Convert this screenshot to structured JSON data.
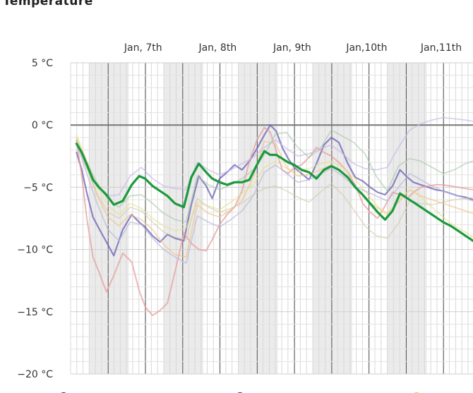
{
  "chart_data": {
    "type": "line",
    "title": "Temperature",
    "yunit": "°C",
    "ylim": [
      -20,
      5
    ],
    "yticks": [
      5,
      0,
      -5,
      -10,
      -15,
      -20
    ],
    "ytick_labels": [
      "5 °C",
      "0 °C",
      "−5 °C",
      "−10 °C",
      "−15 °C",
      "−20 °C"
    ],
    "xlim": [
      6.0,
      11.4
    ],
    "xticks": [
      7,
      8,
      9,
      10,
      11
    ],
    "xtick_labels": [
      "Jan, 7th",
      "Jan, 8th",
      "Jan, 9th",
      "Jan,10th",
      "Jan,11th"
    ],
    "grid": true,
    "night_bands": [
      [
        6.25,
        6.78
      ],
      [
        7.25,
        7.78
      ],
      [
        8.25,
        8.78
      ],
      [
        9.25,
        9.78
      ],
      [
        10.25,
        10.78
      ]
    ],
    "series": [
      {
        "role": "main",
        "color": "#1a9a3c",
        "x": [
          6.08,
          6.15,
          6.22,
          6.3,
          6.38,
          6.48,
          6.58,
          6.7,
          6.82,
          6.92,
          7.0,
          7.1,
          7.2,
          7.3,
          7.4,
          7.52,
          7.62,
          7.72,
          7.82,
          7.9,
          8.0,
          8.1,
          8.2,
          8.3,
          8.4,
          8.5,
          8.6,
          8.68,
          8.76,
          8.84,
          8.92,
          9.0,
          9.1,
          9.2,
          9.3,
          9.4,
          9.5,
          9.6,
          9.72,
          9.82,
          9.92,
          10.02,
          10.12,
          10.22,
          10.32,
          10.42,
          10.52,
          10.6,
          10.7,
          10.8,
          10.9,
          11.0,
          11.1,
          11.2,
          11.3,
          11.4
        ],
        "y": [
          -1.5,
          -2.2,
          -3.2,
          -4.4,
          -5.0,
          -5.6,
          -6.4,
          -6.1,
          -4.8,
          -4.1,
          -4.3,
          -4.9,
          -5.3,
          -5.7,
          -6.3,
          -6.6,
          -4.2,
          -3.1,
          -3.8,
          -4.3,
          -4.6,
          -4.8,
          -4.6,
          -4.6,
          -4.4,
          -3.2,
          -2.1,
          -2.4,
          -2.4,
          -2.7,
          -3.0,
          -3.2,
          -3.6,
          -3.8,
          -4.3,
          -3.6,
          -3.3,
          -3.6,
          -4.2,
          -5.0,
          -5.6,
          -6.3,
          -7.0,
          -7.6,
          -6.9,
          -5.5,
          -5.9,
          -6.2,
          -6.6,
          -7.0,
          -7.4,
          -7.8,
          -8.1,
          -8.5,
          -8.9,
          -9.3
        ],
        "width": 3.2,
        "opacity": 1.0
      },
      {
        "role": "member",
        "color": "#6a5fb5",
        "x": [
          6.08,
          6.15,
          6.22,
          6.3,
          6.38,
          6.48,
          6.58,
          6.7,
          6.82,
          6.92,
          7.0,
          7.1,
          7.2,
          7.3,
          7.4,
          7.52,
          7.62,
          7.72,
          7.82,
          7.9,
          8.0,
          8.1,
          8.2,
          8.3,
          8.4,
          8.5,
          8.6,
          8.68,
          8.76,
          8.84,
          8.92,
          9.0,
          9.1,
          9.2,
          9.3,
          9.4,
          9.5,
          9.6,
          9.72,
          9.82,
          9.92,
          10.02,
          10.12,
          10.22,
          10.32,
          10.42,
          10.52,
          10.6,
          10.7,
          10.8,
          10.9,
          11.0,
          11.1,
          11.2,
          11.3,
          11.4
        ],
        "y": [
          -2.2,
          -3.6,
          -5.5,
          -7.4,
          -8.3,
          -9.4,
          -10.5,
          -8.4,
          -7.2,
          -7.8,
          -8.2,
          -8.9,
          -9.4,
          -8.8,
          -9.1,
          -9.3,
          -6.4,
          -4.1,
          -4.9,
          -5.9,
          -4.3,
          -3.8,
          -3.2,
          -3.6,
          -2.9,
          -1.9,
          -0.8,
          0.0,
          -0.5,
          -1.8,
          -2.7,
          -3.4,
          -3.9,
          -4.4,
          -3.1,
          -1.6,
          -1.0,
          -1.4,
          -3.1,
          -4.2,
          -4.5,
          -5.0,
          -5.4,
          -5.6,
          -4.9,
          -3.6,
          -4.2,
          -4.6,
          -4.8,
          -5.0,
          -5.2,
          -5.3,
          -5.5,
          -5.7,
          -5.8,
          -6.0
        ],
        "width": 2.2,
        "opacity": 0.75
      },
      {
        "role": "member",
        "color": "#e89a9a",
        "x": [
          6.08,
          6.15,
          6.22,
          6.3,
          6.38,
          6.48,
          6.58,
          6.7,
          6.82,
          6.92,
          7.0,
          7.1,
          7.2,
          7.3,
          7.4,
          7.52,
          7.62,
          7.72,
          7.82,
          7.9,
          8.0,
          8.1,
          8.2,
          8.3,
          8.4,
          8.5,
          8.6,
          8.68,
          8.76,
          8.84,
          8.92,
          9.0,
          9.1,
          9.2,
          9.3,
          9.4,
          9.5,
          9.6,
          9.72,
          9.82,
          9.92,
          10.02,
          10.12,
          10.22,
          10.32,
          10.42,
          10.52,
          10.6,
          10.7,
          10.8,
          10.9,
          11.0,
          11.1,
          11.2,
          11.3,
          11.4
        ],
        "y": [
          -1.2,
          -4.1,
          -7.6,
          -10.6,
          -11.8,
          -13.4,
          -12.1,
          -10.3,
          -11.0,
          -13.3,
          -14.6,
          -15.3,
          -14.9,
          -14.3,
          -11.8,
          -8.7,
          -9.5,
          -10.0,
          -10.1,
          -9.2,
          -8.0,
          -7.2,
          -6.6,
          -5.3,
          -2.9,
          -1.2,
          -0.2,
          -0.6,
          -2.1,
          -3.6,
          -3.9,
          -3.4,
          -3.2,
          -2.6,
          -1.8,
          -2.2,
          -2.5,
          -3.0,
          -3.8,
          -4.8,
          -6.3,
          -7.0,
          -7.5,
          -6.5,
          -5.4,
          -5.6,
          -5.9,
          -5.4,
          -5.0,
          -4.9,
          -4.8,
          -4.8,
          -4.9,
          -5.0,
          -5.1,
          -5.2
        ],
        "width": 2.0,
        "opacity": 0.7
      },
      {
        "role": "member",
        "color": "#f0c080",
        "x": [
          6.08,
          6.2,
          6.35,
          6.5,
          6.65,
          6.8,
          6.95,
          7.1,
          7.25,
          7.4,
          7.55,
          7.7,
          7.85,
          8.0,
          8.15,
          8.3,
          8.45,
          8.6,
          8.75,
          8.9,
          9.05,
          9.2,
          9.35,
          9.5,
          9.65,
          9.8,
          9.95,
          10.1,
          10.25,
          10.4,
          10.55,
          10.7,
          10.85,
          11.0,
          11.15,
          11.3,
          11.4
        ],
        "y": [
          -1.0,
          -3.0,
          -5.6,
          -7.4,
          -8.1,
          -7.2,
          -7.6,
          -8.4,
          -9.6,
          -10.4,
          -10.6,
          -6.4,
          -7.1,
          -7.4,
          -6.8,
          -6.1,
          -4.2,
          -1.3,
          -1.5,
          -3.4,
          -4.1,
          -4.0,
          -3.6,
          -3.2,
          -3.9,
          -4.8,
          -5.9,
          -6.6,
          -7.1,
          -6.2,
          -5.2,
          -5.7,
          -6.0,
          -6.3,
          -6.6,
          -6.9,
          -7.1
        ],
        "width": 1.8,
        "opacity": 0.6
      },
      {
        "role": "member",
        "color": "#e8e08a",
        "x": [
          6.08,
          6.2,
          6.35,
          6.5,
          6.65,
          6.8,
          6.95,
          7.1,
          7.25,
          7.4,
          7.55,
          7.7,
          7.85,
          8.0,
          8.15,
          8.3,
          8.45,
          8.6,
          8.75,
          8.9,
          9.05,
          9.2,
          9.35,
          9.5,
          9.65,
          9.8,
          9.95,
          10.1,
          10.25,
          10.4,
          10.55,
          10.7,
          10.85,
          11.0,
          11.15,
          11.3,
          11.4
        ],
        "y": [
          -0.8,
          -2.6,
          -4.9,
          -6.5,
          -7.2,
          -6.3,
          -6.7,
          -7.5,
          -8.1,
          -8.5,
          -8.3,
          -6.2,
          -6.5,
          -6.8,
          -6.2,
          -5.5,
          -4.8,
          -3.4,
          -2.9,
          -3.5,
          -3.8,
          -3.5,
          -3.1,
          -2.9,
          -3.4,
          -4.2,
          -5.3,
          -6.4,
          -7.3,
          -6.0,
          -5.2,
          -5.8,
          -6.6,
          -7.4,
          -8.1,
          -8.6,
          -9.0
        ],
        "width": 1.8,
        "opacity": 0.6
      },
      {
        "role": "member",
        "color": "#b8b8d8",
        "x": [
          6.08,
          6.2,
          6.35,
          6.5,
          6.65,
          6.8,
          6.95,
          7.1,
          7.25,
          7.4,
          7.55,
          7.7,
          7.85,
          8.0,
          8.15,
          8.3,
          8.45,
          8.6,
          8.75,
          8.9,
          9.05,
          9.2,
          9.35,
          9.5,
          9.65,
          9.8,
          9.95,
          10.1,
          10.25,
          10.4,
          10.55,
          10.7,
          10.85,
          11.0,
          11.15,
          11.3,
          11.4
        ],
        "y": [
          -1.4,
          -3.6,
          -6.2,
          -8.4,
          -9.3,
          -7.8,
          -8.0,
          -9.1,
          -10.0,
          -10.6,
          -11.1,
          -7.3,
          -7.8,
          -8.2,
          -7.6,
          -6.9,
          -5.7,
          -3.8,
          -3.2,
          -3.9,
          -4.6,
          -4.4,
          -3.9,
          -3.5,
          -4.1,
          -4.9,
          -5.3,
          -5.7,
          -6.1,
          -5.0,
          -3.9,
          -4.4,
          -4.9,
          -5.3,
          -5.6,
          -5.9,
          -6.1
        ],
        "width": 1.8,
        "opacity": 0.65
      },
      {
        "role": "member",
        "color": "#c8b8e8",
        "x": [
          6.08,
          6.2,
          6.35,
          6.5,
          6.65,
          6.8,
          6.95,
          7.1,
          7.25,
          7.4,
          7.55,
          7.7,
          7.85,
          8.0,
          8.15,
          8.3,
          8.45,
          8.6,
          8.75,
          8.9,
          9.05,
          9.2,
          9.35,
          9.5,
          9.65,
          9.8,
          9.95,
          10.1,
          10.25,
          10.4,
          10.55,
          10.7,
          10.85,
          11.0,
          11.15,
          11.3,
          11.4
        ],
        "y": [
          -1.6,
          -3.2,
          -4.8,
          -5.7,
          -5.6,
          -4.1,
          -3.4,
          -4.3,
          -4.9,
          -5.1,
          -5.2,
          -3.0,
          -3.6,
          -4.0,
          -3.6,
          -3.1,
          -2.6,
          -1.8,
          -1.2,
          -1.9,
          -2.5,
          -2.3,
          -1.9,
          -1.6,
          -2.3,
          -3.1,
          -3.5,
          -3.6,
          -3.4,
          -1.8,
          -0.4,
          0.1,
          0.4,
          0.6,
          0.5,
          0.4,
          0.3
        ],
        "width": 1.8,
        "opacity": 0.65
      },
      {
        "role": "member",
        "color": "#a8c8a8",
        "x": [
          6.08,
          6.2,
          6.35,
          6.5,
          6.65,
          6.8,
          6.95,
          7.1,
          7.25,
          7.4,
          7.55,
          7.7,
          7.85,
          8.0,
          8.15,
          8.3,
          8.45,
          8.6,
          8.75,
          8.9,
          9.05,
          9.2,
          9.35,
          9.5,
          9.65,
          9.8,
          9.95,
          10.1,
          10.25,
          10.4,
          10.55,
          10.7,
          10.85,
          11.0,
          11.15,
          11.3,
          11.4
        ],
        "y": [
          -1.2,
          -2.8,
          -4.6,
          -6.0,
          -6.6,
          -5.7,
          -5.6,
          -6.3,
          -7.1,
          -7.6,
          -7.8,
          -4.1,
          -4.8,
          -5.2,
          -4.8,
          -4.3,
          -3.6,
          -2.4,
          -0.7,
          -0.6,
          -1.8,
          -2.6,
          -1.9,
          -0.4,
          -0.9,
          -1.4,
          -2.3,
          -4.1,
          -5.3,
          -3.3,
          -2.7,
          -2.9,
          -3.4,
          -3.9,
          -3.6,
          -3.1,
          -2.9
        ],
        "width": 1.8,
        "opacity": 0.6
      },
      {
        "role": "member",
        "color": "#d0c8a8",
        "x": [
          6.08,
          6.2,
          6.35,
          6.5,
          6.65,
          6.8,
          6.95,
          7.1,
          7.25,
          7.4,
          7.55,
          7.7,
          7.85,
          8.0,
          8.15,
          8.3,
          8.45,
          8.6,
          8.75,
          8.9,
          9.05,
          9.2,
          9.35,
          9.5,
          9.65,
          9.8,
          9.95,
          10.1,
          10.25,
          10.4,
          10.55,
          10.7,
          10.85,
          11.0,
          11.15,
          11.3,
          11.4
        ],
        "y": [
          -1.3,
          -3.3,
          -5.4,
          -7.0,
          -7.5,
          -6.6,
          -6.9,
          -7.8,
          -8.6,
          -9.0,
          -9.2,
          -5.9,
          -6.6,
          -7.0,
          -6.7,
          -6.3,
          -5.6,
          -5.1,
          -4.9,
          -5.3,
          -5.8,
          -6.2,
          -5.4,
          -4.7,
          -5.6,
          -6.8,
          -8.1,
          -8.9,
          -9.1,
          -7.9,
          -6.1,
          -6.3,
          -6.4,
          -6.2,
          -6.0,
          -5.9,
          -5.8
        ],
        "width": 1.6,
        "opacity": 0.6
      }
    ]
  }
}
